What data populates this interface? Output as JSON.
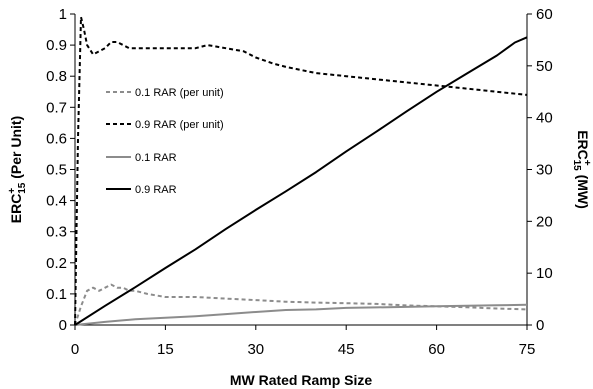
{
  "chart_data": {
    "type": "line",
    "xlabel": "MW Rated Ramp Size",
    "ylabel_left": {
      "main": "ERC",
      "sup": "+",
      "sub": "15",
      "suffix": " (Per Unit)"
    },
    "ylabel_right": {
      "main": "ERC",
      "sup": "+",
      "sub": "15",
      "suffix": " (MW)"
    },
    "xlim": [
      0,
      75
    ],
    "ylim_left": [
      0,
      1
    ],
    "ylim_right": [
      0,
      60
    ],
    "x_ticks": [
      "0",
      "15",
      "30",
      "45",
      "60",
      "75"
    ],
    "y_left_ticks": [
      "0",
      "0.1",
      "0.2",
      "0.3",
      "0.4",
      "0.5",
      "0.6",
      "0.7",
      "0.8",
      "0.9",
      "1"
    ],
    "y_right_ticks": [
      "0",
      "10",
      "20",
      "30",
      "40",
      "50",
      "60"
    ],
    "grid": false,
    "legend_position": "upper-left inside plot",
    "series": [
      {
        "name": "0.1 RAR (per unit)",
        "axis": "left",
        "color": "#8c8c8c",
        "dash": "dashed",
        "x": [
          0,
          1,
          2,
          3,
          4,
          5,
          6,
          7,
          8,
          9,
          10,
          12,
          15,
          18,
          20,
          25,
          30,
          35,
          40,
          45,
          50,
          55,
          60,
          65,
          70,
          75
        ],
        "y": [
          0,
          0.06,
          0.11,
          0.12,
          0.11,
          0.12,
          0.13,
          0.12,
          0.12,
          0.11,
          0.11,
          0.1,
          0.09,
          0.09,
          0.09,
          0.085,
          0.08,
          0.075,
          0.072,
          0.07,
          0.068,
          0.063,
          0.06,
          0.057,
          0.053,
          0.05
        ]
      },
      {
        "name": "0.9 RAR (per unit)",
        "axis": "left",
        "color": "#000000",
        "dash": "dashed",
        "x": [
          0,
          0.5,
          1,
          1.5,
          2,
          3,
          4,
          5,
          6,
          7,
          8,
          9,
          10,
          12,
          15,
          18,
          20,
          22,
          25,
          28,
          30,
          33,
          35,
          40,
          45,
          50,
          55,
          60,
          65,
          70,
          75
        ],
        "y": [
          0,
          0.6,
          0.99,
          0.95,
          0.9,
          0.87,
          0.88,
          0.89,
          0.91,
          0.91,
          0.9,
          0.89,
          0.89,
          0.89,
          0.89,
          0.89,
          0.89,
          0.9,
          0.89,
          0.88,
          0.86,
          0.84,
          0.83,
          0.81,
          0.8,
          0.79,
          0.78,
          0.77,
          0.76,
          0.75,
          0.74
        ]
      },
      {
        "name": "0.1 RAR",
        "axis": "right",
        "color": "#8c8c8c",
        "dash": "solid",
        "x": [
          0,
          5,
          10,
          15,
          20,
          25,
          30,
          35,
          40,
          45,
          50,
          55,
          60,
          65,
          70,
          75
        ],
        "y": [
          0,
          0.6,
          1.1,
          1.4,
          1.7,
          2.1,
          2.5,
          2.9,
          3.0,
          3.3,
          3.4,
          3.5,
          3.6,
          3.7,
          3.8,
          3.9
        ]
      },
      {
        "name": "0.9 RAR",
        "axis": "right",
        "color": "#000000",
        "dash": "solid",
        "x": [
          0,
          5,
          10,
          15,
          20,
          25,
          30,
          35,
          40,
          45,
          50,
          55,
          60,
          65,
          70,
          73,
          75
        ],
        "y": [
          0,
          3.7,
          7.3,
          11,
          14.6,
          18.5,
          22.2,
          25.8,
          29.5,
          33.5,
          37.3,
          41.2,
          45,
          48.5,
          52,
          54.5,
          55.5
        ]
      }
    ]
  }
}
